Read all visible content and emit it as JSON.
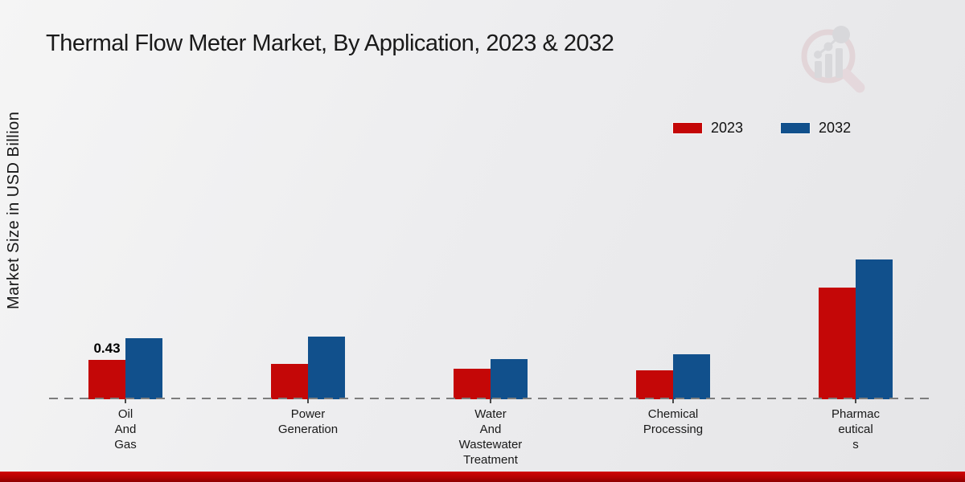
{
  "title": "Thermal Flow Meter Market, By Application, 2023 & 2032",
  "y_axis_label": "Market Size in USD Billion",
  "legend": [
    {
      "label": "2023",
      "color": "#c40707"
    },
    {
      "label": "2032",
      "color": "#11508c"
    }
  ],
  "colors": {
    "series_2023": "#c40707",
    "series_2032": "#11508c",
    "baseline_dash": "#7d7d7d",
    "footer_red": "#b40202",
    "background": "#ededef"
  },
  "watermark_name": "magnifier-bar-chart-logo",
  "chart_data": {
    "type": "bar",
    "title": "Thermal Flow Meter Market, By Application, 2023 & 2032",
    "xlabel": "",
    "ylabel": "Market Size in USD Billion",
    "categories": [
      "Oil And Gas",
      "Power Generation",
      "Water And Wastewater Treatment",
      "Chemical Processing",
      "Pharmaceuticals"
    ],
    "category_display_lines": [
      "Oil\nAnd\nGas",
      "Power\nGeneration",
      "Water\nAnd\nWastewater\nTreatment",
      "Chemical\nProcessing",
      "Pharmac\neutical\ns"
    ],
    "series": [
      {
        "name": "2023",
        "color": "#c40707",
        "values": [
          0.43,
          0.39,
          0.33,
          0.32,
          1.22
        ]
      },
      {
        "name": "2032",
        "color": "#11508c",
        "values": [
          0.67,
          0.68,
          0.44,
          0.49,
          1.53
        ]
      }
    ],
    "bar_labels": [
      {
        "series": "2023",
        "category": "Oil And Gas",
        "text": "0.43"
      }
    ],
    "ylim": [
      0,
      1.75
    ],
    "grid": false,
    "legend_position": "top-right",
    "baseline_style": "dashed",
    "y_ticks_visible": false
  }
}
